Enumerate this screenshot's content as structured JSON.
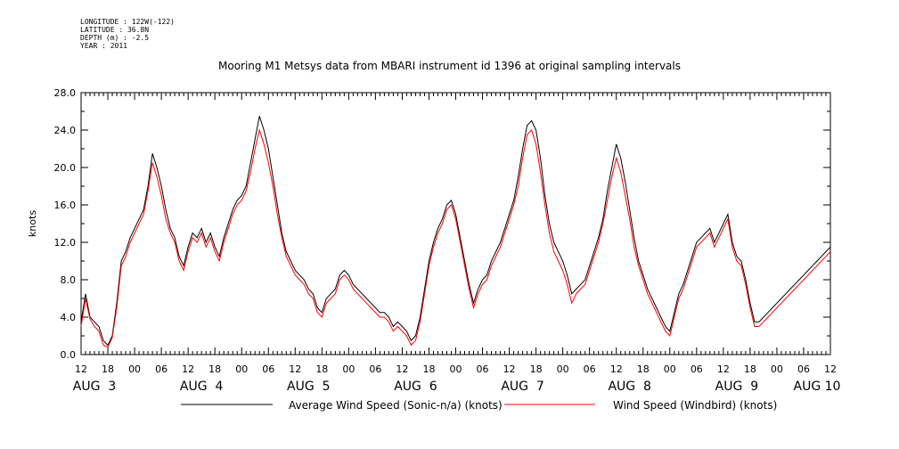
{
  "meta": {
    "longitude": "LONGITUDE : 122W(-122)",
    "latitude": "LATITUDE : 36.8N",
    "depth": "DEPTH (m) : -2.5",
    "year": "YEAR : 2011"
  },
  "chart_data": {
    "type": "line",
    "title": "Mooring M1 Metsys data from MBARI instrument id 1396 at original sampling intervals",
    "ylabel": "knots",
    "xlabel": "",
    "ylim": [
      0,
      28
    ],
    "xlim_hours": [
      0,
      168
    ],
    "grid": false,
    "legend_position": "bottom",
    "y_ticks": [
      "0.0",
      "4.0",
      "8.0",
      "12.0",
      "16.0",
      "20.0",
      "24.0",
      "28.0"
    ],
    "x_hour_ticks": [
      "12",
      "18",
      "00",
      "06",
      "12",
      "18",
      "00",
      "06",
      "12",
      "18",
      "00",
      "06",
      "12",
      "18",
      "00",
      "06",
      "12",
      "18",
      "00",
      "06",
      "12",
      "18",
      "00",
      "06",
      "12",
      "18",
      "00",
      "06",
      "12"
    ],
    "day_labels": [
      {
        "label": "AUG  3",
        "hour": 3
      },
      {
        "label": "AUG  4",
        "hour": 27
      },
      {
        "label": "AUG  5",
        "hour": 51
      },
      {
        "label": "AUG  6",
        "hour": 75
      },
      {
        "label": "AUG  7",
        "hour": 99
      },
      {
        "label": "AUG  8",
        "hour": 123
      },
      {
        "label": "AUG  9",
        "hour": 147
      },
      {
        "label": "AUG 10",
        "hour": 165
      }
    ],
    "x_hours": [
      0,
      1,
      2,
      3,
      4,
      5,
      6,
      7,
      8,
      9,
      10,
      11,
      12,
      13,
      14,
      15,
      16,
      17,
      18,
      19,
      20,
      21,
      22,
      23,
      24,
      25,
      26,
      27,
      28,
      29,
      30,
      31,
      32,
      33,
      34,
      35,
      36,
      37,
      38,
      39,
      40,
      41,
      42,
      43,
      44,
      45,
      46,
      47,
      48,
      49,
      50,
      51,
      52,
      53,
      54,
      55,
      56,
      57,
      58,
      59,
      60,
      61,
      62,
      63,
      64,
      65,
      66,
      67,
      68,
      69,
      70,
      71,
      72,
      73,
      74,
      75,
      76,
      77,
      78,
      79,
      80,
      81,
      82,
      83,
      84,
      85,
      86,
      87,
      88,
      89,
      90,
      91,
      92,
      93,
      94,
      95,
      96,
      97,
      98,
      99,
      100,
      101,
      102,
      103,
      104,
      105,
      106,
      107,
      108,
      109,
      110,
      111,
      112,
      113,
      114,
      115,
      116,
      117,
      118,
      119,
      120,
      121,
      122,
      123,
      124,
      125,
      126,
      127,
      128,
      129,
      130,
      131,
      132,
      133,
      134,
      135,
      136,
      137,
      138,
      139,
      140,
      141,
      142,
      143,
      144,
      145,
      146,
      147,
      148,
      149,
      150,
      151,
      152,
      153,
      154,
      155,
      156,
      157,
      158,
      159,
      160,
      161,
      162,
      163,
      164,
      165,
      166,
      167,
      168
    ],
    "series": [
      {
        "name": "Average Wind Speed (Sonic-n/a) (knots)",
        "color": "#000000",
        "values": [
          3.5,
          6.5,
          4.0,
          3.5,
          3.0,
          1.5,
          1.0,
          2.0,
          5.5,
          10.0,
          11.0,
          12.5,
          13.5,
          14.5,
          15.5,
          18.0,
          21.5,
          20.0,
          18.0,
          15.5,
          13.5,
          12.5,
          10.5,
          9.5,
          11.5,
          13.0,
          12.5,
          13.5,
          12.0,
          13.0,
          11.5,
          10.5,
          12.5,
          14.0,
          15.5,
          16.5,
          17.0,
          18.0,
          20.5,
          23.0,
          25.5,
          24.0,
          22.0,
          19.0,
          16.0,
          13.0,
          11.0,
          10.0,
          9.0,
          8.5,
          8.0,
          7.0,
          6.5,
          5.0,
          4.5,
          6.0,
          6.5,
          7.0,
          8.5,
          9.0,
          8.5,
          7.5,
          7.0,
          6.5,
          6.0,
          5.5,
          5.0,
          4.5,
          4.5,
          4.0,
          3.0,
          3.5,
          3.0,
          2.5,
          1.5,
          2.0,
          4.0,
          7.0,
          10.0,
          12.0,
          13.5,
          14.5,
          16.0,
          16.5,
          15.0,
          12.5,
          10.0,
          7.5,
          5.5,
          7.0,
          8.0,
          8.5,
          10.0,
          11.0,
          12.0,
          13.5,
          15.0,
          16.5,
          19.0,
          22.0,
          24.5,
          25.0,
          24.0,
          21.0,
          17.0,
          14.0,
          12.0,
          11.0,
          10.0,
          8.5,
          6.5,
          7.0,
          7.5,
          8.0,
          9.5,
          11.0,
          12.5,
          14.5,
          17.5,
          20.0,
          22.5,
          21.0,
          18.5,
          15.5,
          12.5,
          10.0,
          8.5,
          7.0,
          6.0,
          5.0,
          4.0,
          3.0,
          2.5,
          4.5,
          6.5,
          7.5,
          9.0,
          10.5,
          12.0,
          12.5,
          13.0,
          13.5,
          12.0,
          13.0,
          14.0,
          15.0,
          12.0,
          10.5,
          10.0,
          8.0,
          5.5,
          3.5,
          3.5,
          4.0,
          4.5,
          5.0,
          5.5,
          6.0,
          6.5,
          7.0,
          7.5,
          8.0,
          8.5,
          9.0,
          9.5,
          10.0,
          10.5,
          11.0,
          11.5
        ]
      },
      {
        "name": "Wind Speed (Windbird) (knots)",
        "color": "#ff0000",
        "values": [
          3.0,
          6.0,
          3.8,
          3.0,
          2.5,
          1.0,
          0.8,
          1.8,
          5.0,
          9.5,
          10.5,
          12.0,
          13.0,
          14.0,
          15.0,
          17.5,
          20.5,
          19.0,
          17.0,
          14.5,
          13.0,
          12.0,
          10.0,
          9.0,
          11.0,
          12.5,
          12.0,
          13.0,
          11.5,
          12.5,
          11.0,
          10.0,
          12.0,
          13.5,
          15.0,
          16.0,
          16.5,
          17.5,
          19.5,
          22.0,
          24.0,
          22.5,
          20.5,
          18.0,
          15.0,
          12.5,
          10.5,
          9.5,
          8.5,
          8.0,
          7.5,
          6.5,
          6.0,
          4.5,
          4.0,
          5.5,
          6.0,
          6.5,
          8.0,
          8.5,
          8.0,
          7.0,
          6.5,
          6.0,
          5.5,
          5.0,
          4.5,
          4.0,
          4.0,
          3.5,
          2.5,
          3.0,
          2.5,
          2.0,
          1.0,
          1.5,
          3.5,
          6.5,
          9.5,
          11.5,
          13.0,
          14.0,
          15.5,
          16.0,
          14.5,
          12.0,
          9.5,
          7.0,
          5.0,
          6.5,
          7.5,
          8.0,
          9.5,
          10.5,
          11.5,
          13.0,
          14.5,
          16.0,
          18.0,
          21.0,
          23.5,
          24.0,
          22.5,
          19.5,
          16.0,
          13.0,
          11.0,
          10.0,
          9.0,
          7.5,
          5.5,
          6.5,
          7.0,
          7.5,
          9.0,
          10.5,
          12.0,
          14.0,
          16.5,
          19.0,
          21.0,
          19.5,
          17.0,
          14.5,
          11.5,
          9.5,
          8.0,
          6.5,
          5.5,
          4.5,
          3.5,
          2.5,
          2.0,
          4.0,
          6.0,
          7.0,
          8.5,
          10.0,
          11.5,
          12.0,
          12.5,
          13.0,
          11.5,
          12.5,
          13.5,
          14.5,
          11.5,
          10.0,
          9.5,
          7.5,
          5.0,
          3.0,
          3.0,
          3.5,
          4.0,
          4.5,
          5.0,
          5.5,
          6.0,
          6.5,
          7.0,
          7.5,
          8.0,
          8.5,
          9.0,
          9.5,
          10.0,
          10.5,
          11.0
        ]
      }
    ]
  }
}
